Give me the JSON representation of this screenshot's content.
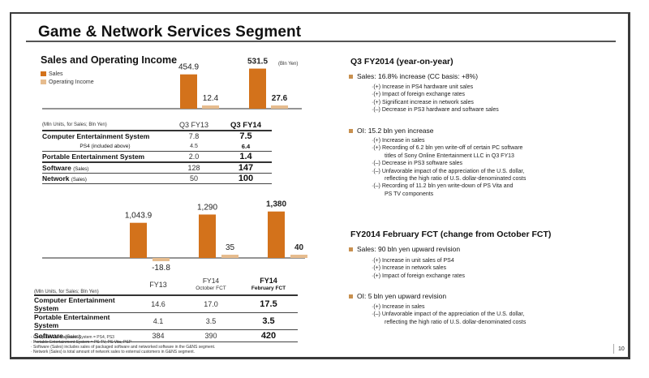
{
  "page": {
    "title": "Game & Network Services Segment",
    "page_number": "10"
  },
  "chart_section": {
    "title": "Sales and Operating Income",
    "unit": "(Bln Yen)",
    "legend": [
      {
        "label": "Sales",
        "color": "#d3721b"
      },
      {
        "label": "Operating Income",
        "color": "#e6bc8e"
      }
    ]
  },
  "chart_data": [
    {
      "type": "bar",
      "title": "Sales and Operating Income (Q3)",
      "categories": [
        "Q3 FY13",
        "Q3 FY14"
      ],
      "series": [
        {
          "name": "Sales",
          "values": [
            454.9,
            531.5
          ],
          "labels": [
            "454.9",
            "531.5"
          ]
        },
        {
          "name": "Operating Income",
          "values": [
            12.4,
            27.6
          ],
          "labels": [
            "12.4",
            "27.6"
          ]
        }
      ],
      "ylabel": "Bln Yen",
      "grid": false
    },
    {
      "type": "bar",
      "title": "Sales and Operating Income (Full Year)",
      "categories": [
        "FY13",
        "FY14 October FCT",
        "FY14 February FCT"
      ],
      "series": [
        {
          "name": "Sales",
          "values": [
            1043.9,
            1290,
            1380
          ],
          "labels": [
            "1,043.9",
            "1,290",
            "1,380"
          ]
        },
        {
          "name": "Operating Income",
          "values": [
            -18.8,
            35,
            40
          ],
          "labels": [
            "-18.8",
            "35",
            "40"
          ]
        }
      ],
      "ylabel": "Bln Yen",
      "grid": false
    }
  ],
  "table_q3": {
    "unit_note": "(Mln Units, for Sales; Bln Yen)",
    "columns": [
      "Q3 FY13",
      "Q3 FY14"
    ],
    "rows": [
      {
        "name": "Computer Entertainment System",
        "suffix": "",
        "values": [
          "7.8",
          "7.5"
        ]
      },
      {
        "name": "PS4 (included above)",
        "suffix": "",
        "values": [
          "4.5",
          "6.4"
        ],
        "sub": true
      },
      {
        "name": "Portable Entertainment System",
        "suffix": "",
        "values": [
          "2.0",
          "1.4"
        ]
      },
      {
        "name": "Software",
        "suffix": "(Sales)",
        "values": [
          "128",
          "147"
        ]
      },
      {
        "name": "Network",
        "suffix": "(Sales)",
        "values": [
          "50",
          "100"
        ]
      }
    ]
  },
  "table_fy": {
    "unit_note": "(Mln Units, for Sales; Bln Yen)",
    "columns": [
      {
        "line1": "FY13",
        "line2": ""
      },
      {
        "line1": "FY14",
        "line2": "October FCT"
      },
      {
        "line1": "FY14",
        "line2": "February FCT"
      }
    ],
    "rows": [
      {
        "name": "Computer Entertainment System",
        "suffix": "",
        "values": [
          "14.6",
          "17.0",
          "17.5"
        ]
      },
      {
        "name": "Portable Entertainment System",
        "suffix": "",
        "values": [
          "4.1",
          "3.5",
          "3.5"
        ]
      },
      {
        "name": "Software",
        "suffix": "(Sales)",
        "values": [
          "384",
          "390",
          "420"
        ]
      }
    ]
  },
  "footnotes": [
    "· Computer Entertainment System = PS4, PS3",
    "· Portable Entertainment System = PS TV, PS Vita, PSP",
    "· Software (Sales) includes sales of packaged software and networked software in the G&NS segment.",
    "· Network (Sales) is total amount of network sales to external customers in G&NS segment."
  ],
  "right": {
    "q3_heading": "Q3 FY2014 (year-on-year)",
    "q3_sales_bullet": "Sales: 16.8% increase (CC basis:  +8%)",
    "q3_sales_items": [
      "·(+) Increase in PS4 hardware unit sales",
      "·(+) Impact of foreign exchange rates",
      "·(+) Significant increase in network sales",
      "·(–) Decrease in PS3 hardware and software sales"
    ],
    "q3_oi_bullet": "OI:  15.2 bln yen increase",
    "q3_oi_items": [
      "·(+) Increase in sales",
      "·(+) Recording of 6.2 bln yen write-off of certain PC software",
      "titles of Sony Online Entertainment LLC in Q3 FY13",
      "·(–) Decrease in PS3 software sales",
      "·(–) Unfavorable impact of the appreciation of the U.S. dollar,",
      "reflecting the high ratio of U.S. dollar-denominated costs",
      "·(–) Recording of 11.2 bln yen write-down of PS Vita and",
      "PS TV components"
    ],
    "fct_heading": "FY2014 February FCT (change from October FCT)",
    "fct_sales_bullet": "Sales: 90 bln yen upward revision",
    "fct_sales_items": [
      "·(+) Increase in unit sales of PS4",
      "·(+) Increase in network sales",
      "·(+) Impact of foreign exchange rates"
    ],
    "fct_oi_bullet": "OI: 5 bln yen upward revision",
    "fct_oi_items": [
      "·(+) Increase in sales",
      "·(–) Unfavorable impact of the appreciation of the U.S. dollar,",
      "reflecting the high ratio of U.S. dollar-denominated costs"
    ]
  }
}
